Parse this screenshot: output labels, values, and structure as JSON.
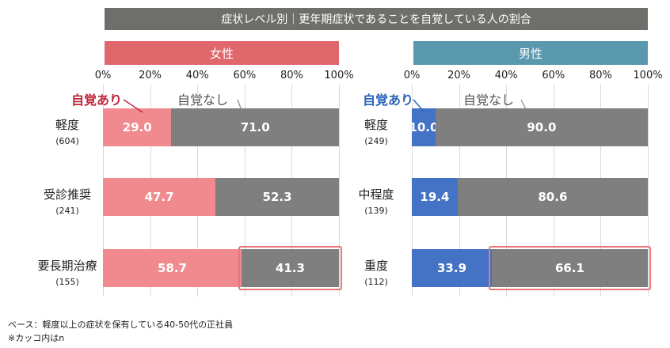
{
  "title": "症状レベル別｜更年期症状であることを自覚している人の割合",
  "chart_data": [
    {
      "type": "bar",
      "stacked": true,
      "orientation": "horizontal",
      "title": "女性",
      "xlim": [
        0,
        100
      ],
      "ticks": [
        "0%",
        "20%",
        "40%",
        "60%",
        "80%",
        "100%"
      ],
      "categories": [
        {
          "label": "軽度",
          "n": "(604)"
        },
        {
          "label": "受診推奨",
          "n": "(241)"
        },
        {
          "label": "要長期治療",
          "n": "(155)"
        }
      ],
      "series": [
        {
          "name": "自覚あり",
          "values": [
            29.0,
            47.7,
            58.7
          ],
          "labels": [
            "29.0",
            "47.7",
            "58.7"
          ]
        },
        {
          "name": "自覚なし",
          "values": [
            71.0,
            52.3,
            41.3
          ],
          "labels": [
            "71.0",
            "52.3",
            "41.3"
          ]
        }
      ]
    },
    {
      "type": "bar",
      "stacked": true,
      "orientation": "horizontal",
      "title": "男性",
      "xlim": [
        0,
        100
      ],
      "ticks": [
        "0%",
        "20%",
        "40%",
        "60%",
        "80%",
        "100%"
      ],
      "categories": [
        {
          "label": "軽度",
          "n": "(249)"
        },
        {
          "label": "中程度",
          "n": "(139)"
        },
        {
          "label": "重度",
          "n": "(112)"
        }
      ],
      "series": [
        {
          "name": "自覚あり",
          "values": [
            10.0,
            19.4,
            33.9
          ],
          "labels": [
            "10.0",
            "19.4",
            "33.9"
          ]
        },
        {
          "name": "自覚なし",
          "values": [
            90.0,
            80.6,
            66.1
          ],
          "labels": [
            "90.0",
            "80.6",
            "66.1"
          ]
        }
      ]
    }
  ],
  "colors": {
    "female_header": "#e0686d",
    "male_header": "#5a98ae",
    "female_yes": "#f08a8e",
    "male_yes": "#4472c4",
    "no": "#7f7f7f",
    "highlight": "#e8747c"
  },
  "footnote": {
    "base": "ベース：軽度以上の症状を保有している40-50代の正社員",
    "note": "※カッコ内はn"
  }
}
